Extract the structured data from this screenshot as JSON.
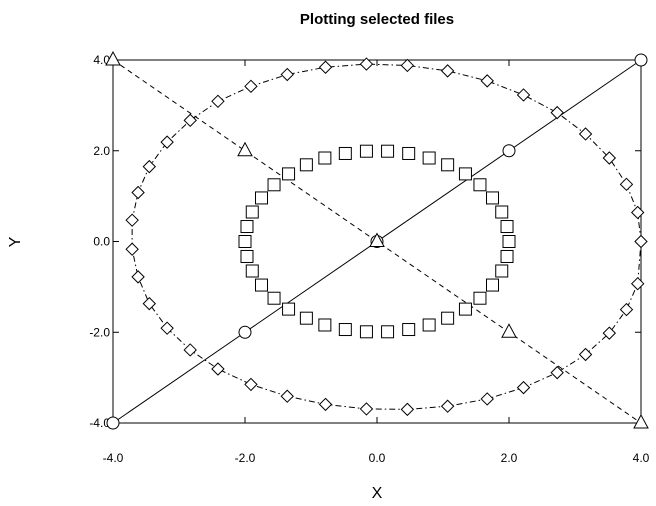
{
  "chart_data": {
    "type": "scatter",
    "title": "Plotting selected files",
    "xlabel": "X",
    "ylabel": "Y",
    "xlim": [
      -4.0,
      4.0
    ],
    "ylim": [
      -4.0,
      4.0
    ],
    "xticks": [
      -4.0,
      -2.0,
      0.0,
      2.0,
      4.0
    ],
    "yticks": [
      -4.0,
      -2.0,
      0.0,
      2.0,
      4.0
    ],
    "xtick_labels": [
      "-4.0",
      "-2.0",
      "0.0",
      "2.0",
      "4.0"
    ],
    "ytick_labels": [
      "-4.0",
      "-2.0",
      "0.0",
      "2.0",
      "4.0"
    ],
    "grid": false,
    "series": [
      {
        "marker": "circle",
        "line": "solid",
        "color": "#000000",
        "x": [
          -4.0,
          -2.0,
          0.0,
          2.0,
          4.0
        ],
        "y": [
          -4.0,
          -2.0,
          0.0,
          2.0,
          4.0
        ]
      },
      {
        "marker": "triangle",
        "line": "dashed",
        "color": "#000000",
        "x": [
          -4.0,
          -2.0,
          0.0,
          2.0,
          4.0
        ],
        "y": [
          4.0,
          2.0,
          0.0,
          -2.0,
          -4.0
        ]
      },
      {
        "marker": "square",
        "line": "none",
        "color": "#000000",
        "x": [
          2.0,
          1.97,
          1.89,
          1.75,
          1.56,
          1.34,
          1.07,
          0.79,
          0.48,
          0.16,
          -0.16,
          -0.48,
          -0.79,
          -1.07,
          -1.34,
          -1.56,
          -1.75,
          -1.89,
          -1.97,
          -2.0,
          -1.97,
          -1.89,
          -1.75,
          -1.56,
          -1.34,
          -1.07,
          -0.79,
          -0.48,
          -0.16,
          0.16,
          0.48,
          0.79,
          1.07,
          1.34,
          1.56,
          1.75,
          1.89,
          1.97
        ],
        "y": [
          0.0,
          0.33,
          0.65,
          0.96,
          1.25,
          1.49,
          1.69,
          1.84,
          1.94,
          1.99,
          1.99,
          1.94,
          1.84,
          1.69,
          1.49,
          1.25,
          0.96,
          0.65,
          0.33,
          0.0,
          -0.33,
          -0.65,
          -0.96,
          -1.25,
          -1.49,
          -1.69,
          -1.84,
          -1.94,
          -1.99,
          -1.99,
          -1.94,
          -1.84,
          -1.69,
          -1.49,
          -1.25,
          -0.96,
          -0.65,
          -0.33
        ]
      },
      {
        "marker": "diamond",
        "line": "dash-dot",
        "color": "#000000",
        "x": [
          4.0,
          3.95,
          3.78,
          3.52,
          3.16,
          2.73,
          2.22,
          1.67,
          1.07,
          0.46,
          -0.16,
          -0.78,
          -1.36,
          -1.91,
          -2.41,
          -2.83,
          -3.18,
          -3.45,
          -3.62,
          -3.71,
          -3.71,
          -3.62,
          -3.45,
          -3.18,
          -2.83,
          -2.41,
          -1.91,
          -1.36,
          -0.78,
          -0.16,
          0.46,
          1.07,
          1.67,
          2.22,
          2.73,
          3.16,
          3.52,
          3.78,
          3.95
        ],
        "y": [
          0.0,
          0.64,
          1.26,
          1.84,
          2.37,
          2.84,
          3.23,
          3.54,
          3.76,
          3.88,
          3.91,
          3.84,
          3.68,
          3.42,
          3.09,
          2.67,
          2.19,
          1.65,
          1.08,
          0.47,
          -0.17,
          -0.78,
          -1.37,
          -1.91,
          -2.39,
          -2.81,
          -3.15,
          -3.41,
          -3.59,
          -3.69,
          -3.7,
          -3.63,
          -3.47,
          -3.22,
          -2.89,
          -2.49,
          -2.02,
          -1.5,
          -0.93
        ]
      }
    ]
  }
}
